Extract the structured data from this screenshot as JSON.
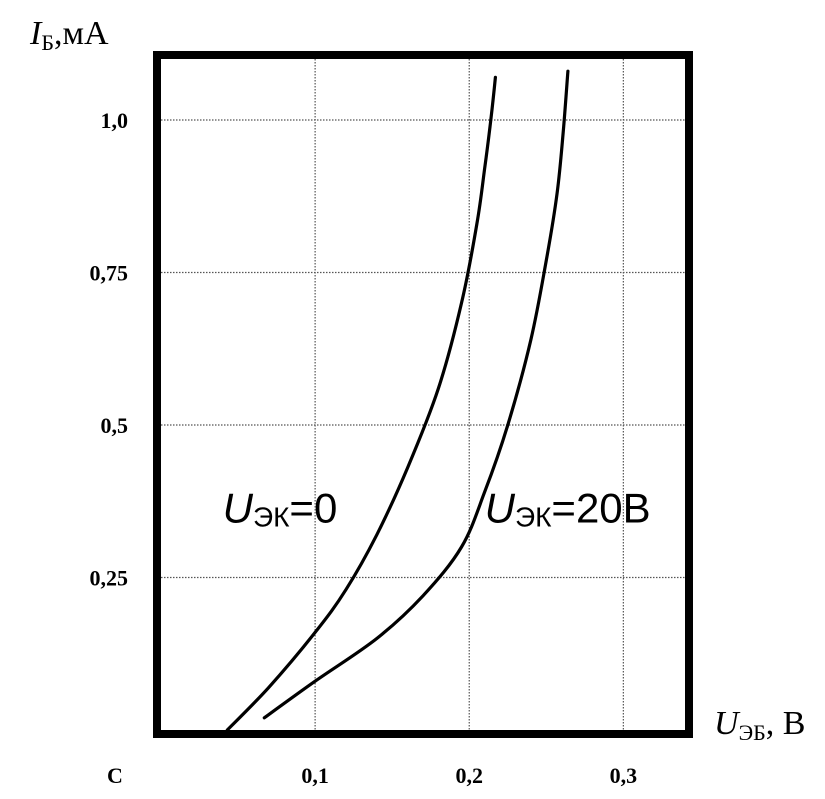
{
  "chart_data": {
    "type": "line",
    "ylabel": {
      "main": "I",
      "sub": "Б",
      "unit": ",мА"
    },
    "xlabel": {
      "main": "U",
      "sub": "ЭБ",
      "unit": ", В"
    },
    "xlim": [
      0,
      0.34
    ],
    "ylim": [
      0,
      1.1
    ],
    "grid": true,
    "x_ticks": [
      {
        "value": 0,
        "label": "С"
      },
      {
        "value": 0.1,
        "label": "0,1"
      },
      {
        "value": 0.2,
        "label": "0,2"
      },
      {
        "value": 0.3,
        "label": "0,3"
      }
    ],
    "y_ticks": [
      {
        "value": 0.25,
        "label": "0,25"
      },
      {
        "value": 0.5,
        "label": "0,5"
      },
      {
        "value": 0.75,
        "label": "0,75"
      },
      {
        "value": 1.0,
        "label": "1,0"
      }
    ],
    "series": [
      {
        "name": {
          "main": "U",
          "sub": "ЭК",
          "rest": "=0"
        },
        "x": [
          0.043,
          0.07,
          0.1,
          0.12,
          0.14,
          0.16,
          0.18,
          0.195,
          0.205,
          0.21,
          0.214,
          0.217
        ],
        "y": [
          0.0,
          0.07,
          0.16,
          0.23,
          0.32,
          0.43,
          0.56,
          0.7,
          0.83,
          0.92,
          1.0,
          1.07
        ],
        "label_at": {
          "x": 0.04,
          "y": 0.34
        }
      },
      {
        "name": {
          "main": "U",
          "sub": "ЭК",
          "rest": "=20В"
        },
        "x": [
          0.067,
          0.1,
          0.14,
          0.17,
          0.195,
          0.21,
          0.225,
          0.24,
          0.25,
          0.257,
          0.261,
          0.264
        ],
        "y": [
          0.02,
          0.08,
          0.15,
          0.22,
          0.3,
          0.39,
          0.5,
          0.64,
          0.77,
          0.88,
          0.98,
          1.08
        ],
        "label_at": {
          "x": 0.21,
          "y": 0.34
        }
      }
    ]
  }
}
